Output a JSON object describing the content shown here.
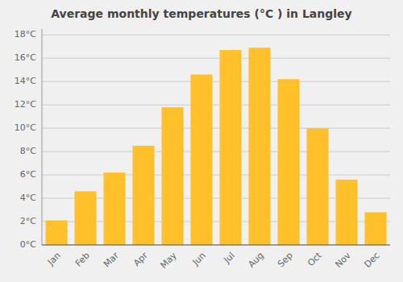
{
  "chart_data": {
    "type": "bar",
    "title": "Average monthly temperatures (°C ) in Langley",
    "categories": [
      "Jan",
      "Feb",
      "Mar",
      "Apr",
      "May",
      "Jun",
      "Jul",
      "Aug",
      "Sep",
      "Oct",
      "Nov",
      "Dec"
    ],
    "values": [
      2.1,
      4.6,
      6.2,
      8.5,
      11.8,
      14.6,
      16.7,
      16.9,
      14.2,
      10.0,
      5.6,
      2.8
    ],
    "color": "#FFC02A",
    "ylim": [
      0,
      18.5
    ],
    "yticks": [
      {
        "value": 0,
        "label": "0°C"
      },
      {
        "value": 2,
        "label": "2°C"
      },
      {
        "value": 4,
        "label": "4°C"
      },
      {
        "value": 6,
        "label": "6°C"
      },
      {
        "value": 8,
        "label": "8°C"
      },
      {
        "value": 10,
        "label": "10°C"
      },
      {
        "value": 12,
        "label": "12°C"
      },
      {
        "value": 14,
        "label": "14°C"
      },
      {
        "value": 16,
        "label": "16°C"
      },
      {
        "value": 18,
        "label": "18°C"
      }
    ],
    "grid": true
  }
}
